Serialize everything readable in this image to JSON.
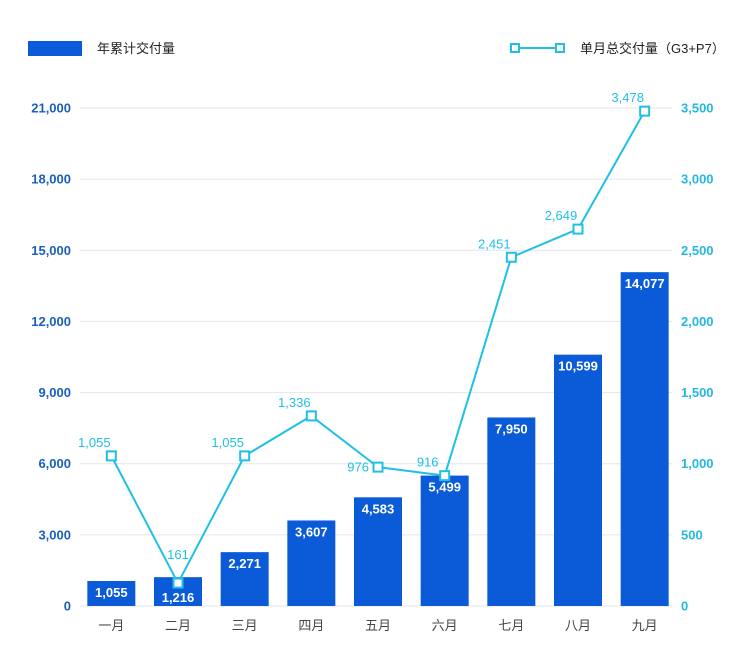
{
  "colors": {
    "bar": "#0b5bd8",
    "line": "#20bfe6",
    "marker_fill": "#ffffff",
    "left_axis_text": "#1a5fbd",
    "right_axis_text": "#25b8e2",
    "grid": "#e4e6ea",
    "category_text": "#444444",
    "bar_label_text": "#ffffff",
    "legend_text": "#222222"
  },
  "chart_data": {
    "type": "bar",
    "categories": [
      "一月",
      "二月",
      "三月",
      "四月",
      "五月",
      "六月",
      "七月",
      "八月",
      "九月"
    ],
    "series": [
      {
        "name": "年累计交付量",
        "type": "bar",
        "axis": "left",
        "values": [
          1055,
          1216,
          2271,
          3607,
          4583,
          5499,
          7950,
          10599,
          14077
        ],
        "labels": [
          "1,055",
          "1,216",
          "2,271",
          "3,607",
          "4,583",
          "5,499",
          "7,950",
          "10,599",
          "14,077"
        ]
      },
      {
        "name": "单月总交付量（G3+P7）",
        "type": "line",
        "axis": "right",
        "marker": "square",
        "values": [
          1055,
          161,
          1055,
          1336,
          976,
          916,
          2451,
          2649,
          3478
        ],
        "labels": [
          "1,055",
          "161",
          "1,055",
          "1,336",
          "976",
          "916",
          "2,451",
          "2,649",
          "3,478"
        ]
      }
    ],
    "y_left": {
      "range": [
        0,
        21000
      ],
      "ticks": [
        0,
        3000,
        6000,
        9000,
        12000,
        15000,
        18000,
        21000
      ],
      "tick_labels": [
        "0",
        "3,000",
        "6,000",
        "9,000",
        "12,000",
        "15,000",
        "18,000",
        "21,000"
      ]
    },
    "y_right": {
      "range": [
        0,
        3500
      ],
      "ticks": [
        0,
        500,
        1000,
        1500,
        2000,
        2500,
        3000,
        3500
      ],
      "tick_labels": [
        "0",
        "500",
        "1,000",
        "1,500",
        "2,000",
        "2,500",
        "3,000",
        "3,500"
      ]
    },
    "grid": true,
    "legend_position": "top"
  }
}
